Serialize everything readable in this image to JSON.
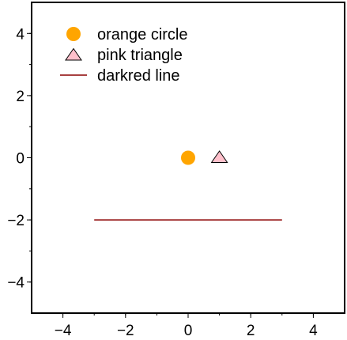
{
  "chart_data": {
    "type": "scatter",
    "title": "",
    "xlabel": "",
    "ylabel": "",
    "xlim": [
      -5,
      5
    ],
    "ylim": [
      -5,
      5
    ],
    "xticks": [
      -4,
      -2,
      0,
      2,
      4
    ],
    "yticks": [
      -4,
      -2,
      0,
      2,
      4
    ],
    "xtick_labels": [
      "−4",
      "−2",
      "0",
      "2",
      "4"
    ],
    "ytick_labels": [
      "−4",
      "−2",
      "0",
      "2",
      "4"
    ],
    "grid": false,
    "legend_position": "top-left",
    "series": [
      {
        "name": "orange circle",
        "kind": "circle",
        "color": "#ffa500",
        "stroke": "none",
        "x": [
          0
        ],
        "y": [
          0
        ]
      },
      {
        "name": "pink triangle",
        "kind": "triangle",
        "color": "#ffc0cb",
        "stroke": "#000000",
        "x": [
          1
        ],
        "y": [
          0
        ]
      },
      {
        "name": "darkred line",
        "kind": "line",
        "color": "#8b0000",
        "x": [
          -3,
          3
        ],
        "y": [
          -2,
          -2
        ]
      }
    ]
  }
}
